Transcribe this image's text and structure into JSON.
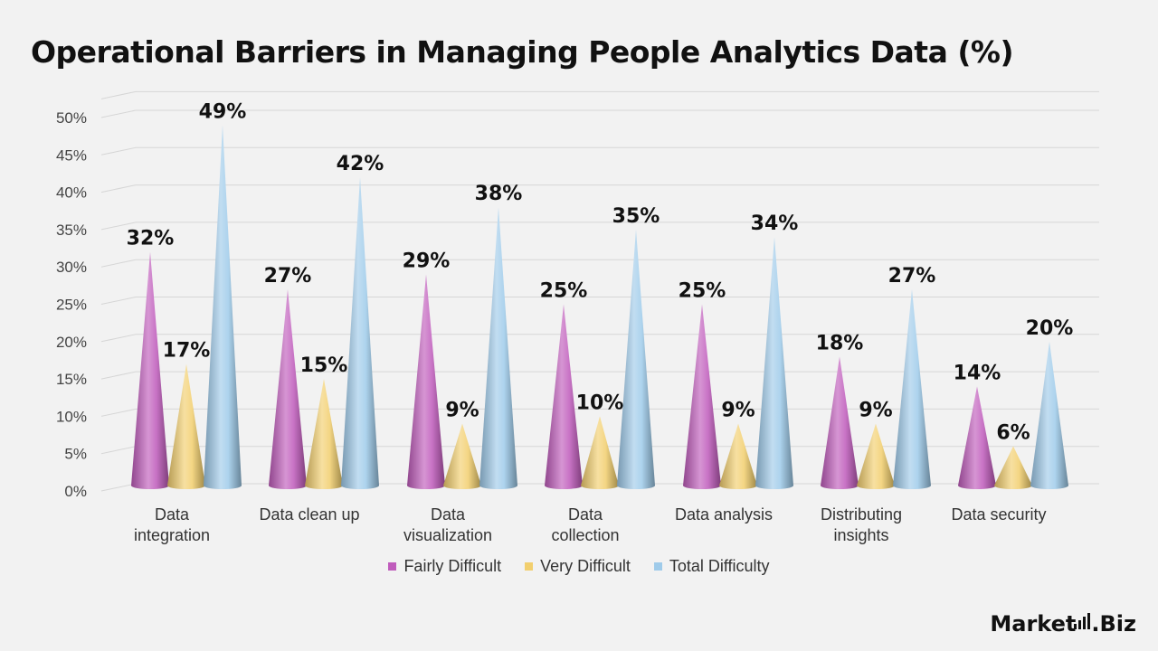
{
  "chart_data": {
    "type": "bar",
    "style": "3d-cone",
    "title": "Operational Barriers in Managing People Analytics Data (%)",
    "xlabel": "",
    "ylabel": "",
    "ylim": [
      0,
      50
    ],
    "ytick_step": 5,
    "ytick_suffix": "%",
    "grid": true,
    "legend_position": "bottom",
    "categories": [
      [
        "Data",
        "integration"
      ],
      [
        "Data clean up"
      ],
      [
        "Data",
        "visualization"
      ],
      [
        "Data",
        "collection"
      ],
      [
        "Data analysis"
      ],
      [
        "Distributing",
        "insights"
      ],
      [
        "Data security"
      ]
    ],
    "series": [
      {
        "name": "Fairly Difficult",
        "color": "#c05cbc",
        "values": [
          32,
          27,
          29,
          25,
          25,
          18,
          14
        ]
      },
      {
        "name": "Very Difficult",
        "color": "#f2cf6e",
        "values": [
          17,
          15,
          9,
          10,
          9,
          9,
          6
        ]
      },
      {
        "name": "Total Difficulty",
        "color": "#9fcbea",
        "values": [
          49,
          42,
          38,
          35,
          34,
          27,
          20
        ]
      }
    ],
    "value_suffix": "%"
  },
  "logo": {
    "text_left": "Market",
    "text_right": "Biz"
  }
}
